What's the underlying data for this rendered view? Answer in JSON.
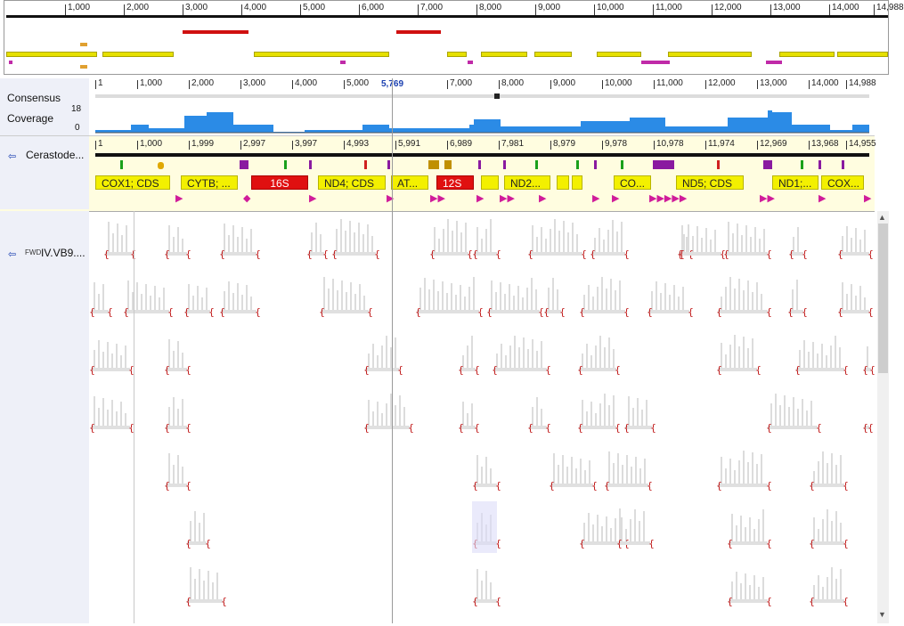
{
  "overview": {
    "ticks": [
      "1,000",
      "2,000",
      "3,000",
      "4,000",
      "5,000",
      "6,000",
      "7,000",
      "8,000",
      "9,000",
      "10,000",
      "11,000",
      "12,000",
      "13,000",
      "14,000",
      "14,988"
    ]
  },
  "ruler": {
    "ticks": [
      "1",
      "1,000",
      "2,000",
      "3,000",
      "4,000",
      "5,000",
      "7,000",
      "8,000",
      "9,000",
      "10,000",
      "11,000",
      "12,000",
      "13,000",
      "14,000",
      "14,988"
    ],
    "cursor_label": "5,769"
  },
  "tracks": {
    "consensus_label": "Consensus",
    "coverage_label": "Coverage",
    "coverage_max": "18",
    "coverage_min": "0",
    "reference_name": "Cerastode...",
    "reads_name": "IV.VB9....",
    "reads_prefix": "FWD"
  },
  "seq_ticks": [
    "1",
    "1,000",
    "1,999",
    "2,997",
    "3,997",
    "4,993",
    "5,991",
    "6,989",
    "7,981",
    "8,979",
    "9,978",
    "10,978",
    "11,974",
    "12,969",
    "13,968",
    "14,955"
  ],
  "annotations": [
    {
      "label": "COX1; CDS",
      "type": "yellow"
    },
    {
      "label": "CYTB; ...",
      "type": "yellow"
    },
    {
      "label": "16S",
      "type": "red"
    },
    {
      "label": "ND4; CDS",
      "type": "yellow"
    },
    {
      "label": "AT...",
      "type": "yellow"
    },
    {
      "label": "12S",
      "type": "red"
    },
    {
      "label": "ND2...",
      "type": "yellow"
    },
    {
      "label": "CO...",
      "type": "yellow"
    },
    {
      "label": "ND5; CDS",
      "type": "yellow"
    },
    {
      "label": "ND1;...",
      "type": "yellow"
    },
    {
      "label": "COX...",
      "type": "yellow"
    }
  ],
  "colors": {
    "gene": "#f3f000",
    "rrna": "#e01010",
    "coverage": "#2b8be6",
    "trna": "#b0149a",
    "left_panel": "#eef0f8"
  }
}
